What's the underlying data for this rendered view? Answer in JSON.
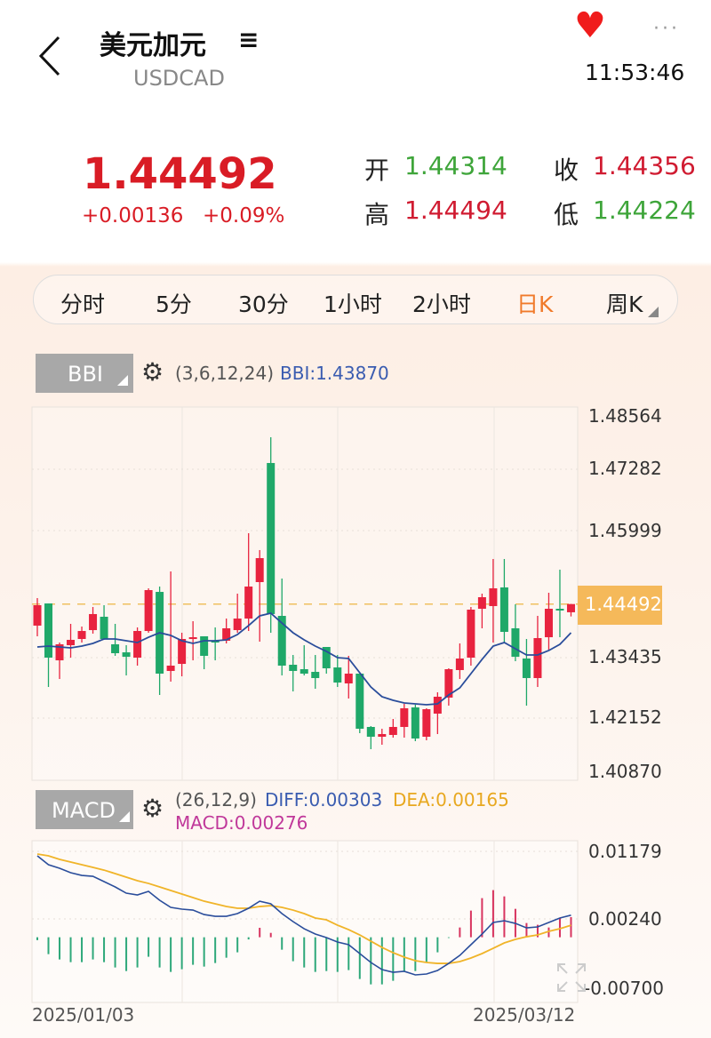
{
  "header": {
    "title": "美元加元",
    "menu_icon": "≡",
    "symbol": "USDCAD",
    "time": "11:53:46",
    "favorite_icon": "heart-icon",
    "more_icon": "···"
  },
  "quote": {
    "price": "1.44492",
    "change": "+0.00136",
    "change_pct": "+0.09%",
    "open_label": "开",
    "open": "1.44314",
    "close_label": "收",
    "close": "1.44356",
    "high_label": "高",
    "high": "1.44494",
    "low_label": "低",
    "low": "1.44224"
  },
  "tabs": [
    {
      "label": "分时"
    },
    {
      "label": "5分"
    },
    {
      "label": "30分"
    },
    {
      "label": "1小时"
    },
    {
      "label": "2小时"
    },
    {
      "label": "日K",
      "active": true
    },
    {
      "label": "周K"
    }
  ],
  "colors": {
    "up": "#e8233f",
    "down": "#1fa869",
    "bbi": "#2a4d9b",
    "diff": "#2a4d9b",
    "dea": "#f0b429",
    "accent": "#f07a2a",
    "price_tag": "#f5b95a",
    "macd": "#c0389a"
  },
  "indicator_main": {
    "name": "BBI",
    "params": "(3,6,12,24)",
    "value": "BBI:1.43870"
  },
  "indicator_sub": {
    "name": "MACD",
    "params": "(26,12,9)",
    "diff": "DIFF:0.00303",
    "dea": "DEA:0.00165",
    "macd": "MACD:0.00276"
  },
  "chart_data": [
    {
      "type": "candlestick",
      "yaxis_ticks": [
        "1.48564",
        "1.47282",
        "1.45999",
        "1.43435",
        "1.42152",
        "1.40870"
      ],
      "ylim": [
        1.4087,
        1.48564
      ],
      "current_price": "1.44492",
      "grid": true,
      "ohlc": [
        [
          1.44025,
          1.44621,
          1.43794,
          1.44467
        ],
        [
          1.44505,
          1.44505,
          1.42697,
          1.43332
        ],
        [
          1.43274,
          1.43659,
          1.4287,
          1.43621
        ],
        [
          1.43601,
          1.44063,
          1.43332,
          1.43717
        ],
        [
          1.43736,
          1.44005,
          1.43659,
          1.43909
        ],
        [
          1.43928,
          1.44428,
          1.43851,
          1.44275
        ],
        [
          1.44217,
          1.44467,
          1.43717,
          1.43736
        ],
        [
          1.43621,
          1.44063,
          1.43371,
          1.43428
        ],
        [
          1.43447,
          1.43601,
          1.42947,
          1.43351
        ],
        [
          1.43332,
          1.43986,
          1.43159,
          1.43909
        ],
        [
          1.43909,
          1.44832,
          1.43871,
          1.44794
        ],
        [
          1.44755,
          1.44871,
          1.42524,
          1.42986
        ],
        [
          1.43044,
          1.45198,
          1.42813,
          1.43159
        ],
        [
          1.43197,
          1.43871,
          1.42928,
          1.43736
        ],
        [
          1.43736,
          1.44121,
          1.43274,
          1.43774
        ],
        [
          1.43794,
          1.43794,
          1.43082,
          1.43371
        ],
        [
          1.43698,
          1.43986,
          1.43274,
          1.43659
        ],
        [
          1.43698,
          1.44178,
          1.4364,
          1.43967
        ],
        [
          1.43928,
          1.44717,
          1.43871,
          1.44178
        ],
        [
          1.44178,
          1.46025,
          1.43909,
          1.44871
        ],
        [
          1.44967,
          1.4566,
          1.43678,
          1.45486
        ],
        [
          1.47545,
          1.48102,
          1.43871,
          1.44275
        ],
        [
          1.44236,
          1.45044,
          1.42947,
          1.43159
        ],
        [
          1.43178,
          1.4339,
          1.42601,
          1.43044
        ],
        [
          1.43082,
          1.43601,
          1.42947,
          1.42986
        ],
        [
          1.43024,
          1.4339,
          1.42659,
          1.4289
        ],
        [
          1.43563,
          1.43563,
          1.42986,
          1.43101
        ],
        [
          1.4312,
          1.4339,
          1.42697,
          1.42793
        ],
        [
          1.42774,
          1.43371,
          1.42447,
          1.42986
        ],
        [
          1.42986,
          1.42986,
          1.41697,
          1.41793
        ],
        [
          1.41832,
          1.41851,
          1.41351,
          1.4162
        ],
        [
          1.4162,
          1.41793,
          1.41447,
          1.41678
        ],
        [
          1.41659,
          1.42005,
          1.41601,
          1.41832
        ],
        [
          1.41832,
          1.42332,
          1.41601,
          1.42236
        ],
        [
          1.42255,
          1.42313,
          1.41524,
          1.41582
        ],
        [
          1.4162,
          1.42236,
          1.41543,
          1.42216
        ],
        [
          1.4212,
          1.42582,
          1.41678,
          1.42486
        ],
        [
          1.42467,
          1.43101,
          1.42293,
          1.43082
        ],
        [
          1.43063,
          1.4364,
          1.4287,
          1.43313
        ],
        [
          1.43332,
          1.44428,
          1.43159,
          1.44371
        ],
        [
          1.4439,
          1.44717,
          1.43967,
          1.4464
        ],
        [
          1.44448,
          1.45467,
          1.43659,
          1.44832
        ],
        [
          1.44852,
          1.45467,
          1.43659,
          1.4389
        ],
        [
          1.43967,
          1.44486,
          1.43255,
          1.43351
        ],
        [
          1.43313,
          1.43736,
          1.42293,
          1.4289
        ],
        [
          1.4289,
          1.44236,
          1.42697,
          1.43755
        ],
        [
          1.43774,
          1.44736,
          1.43505,
          1.4439
        ],
        [
          1.4439,
          1.45236,
          1.43774,
          1.44352
        ],
        [
          1.44314,
          1.44494,
          1.44224,
          1.44492
        ]
      ],
      "bbi": [
        1.43563,
        1.43582,
        1.43563,
        1.43544,
        1.43582,
        1.4364,
        1.43736,
        1.43736,
        1.43698,
        1.43659,
        1.43774,
        1.43871,
        1.43813,
        1.43698,
        1.4364,
        1.43698,
        1.43698,
        1.43717,
        1.43832,
        1.44025,
        1.44236,
        1.44294,
        1.44082,
        1.43871,
        1.43717,
        1.43582,
        1.43467,
        1.43332,
        1.43313,
        1.43005,
        1.42697,
        1.42486,
        1.42409,
        1.42351,
        1.42332,
        1.42313,
        1.42332,
        1.42524,
        1.42678,
        1.42986,
        1.43294,
        1.43582,
        1.43659,
        1.43524,
        1.4339,
        1.4339,
        1.43486,
        1.43621,
        1.4387
      ]
    },
    {
      "type": "macd",
      "yaxis_ticks": [
        "0.01179",
        "0.00240",
        "-0.00700"
      ],
      "ylim": [
        -0.007,
        0.01179
      ],
      "xaxis_ticks": [
        "2025/01/03",
        "2025/03/12"
      ],
      "diff": [
        0.01118,
        0.00996,
        0.00947,
        0.00886,
        0.00849,
        0.00837,
        0.00764,
        0.00691,
        0.00605,
        0.00581,
        0.0063,
        0.00508,
        0.0041,
        0.00386,
        0.00373,
        0.00312,
        0.00288,
        0.00288,
        0.00325,
        0.00398,
        0.00495,
        0.00459,
        0.00325,
        0.00215,
        0.00117,
        0.00044,
        -5e-05,
        -0.00066,
        -0.00102,
        -0.00224,
        -0.00346,
        -0.00444,
        -0.00481,
        -0.00468,
        -0.00517,
        -0.00505,
        -0.00456,
        -0.00359,
        -0.00249,
        -0.00102,
        0.00044,
        0.00203,
        0.00227,
        0.0019,
        0.00129,
        0.00142,
        0.00203,
        0.00264,
        0.00303
      ],
      "dea": [
        0.01142,
        0.01118,
        0.01069,
        0.01032,
        0.00996,
        0.00959,
        0.00922,
        0.00874,
        0.00825,
        0.00776,
        0.00739,
        0.00691,
        0.00642,
        0.00593,
        0.00544,
        0.00495,
        0.00459,
        0.00422,
        0.00398,
        0.00398,
        0.00422,
        0.00434,
        0.0041,
        0.00373,
        0.00325,
        0.00264,
        0.00239,
        0.00166,
        0.00105,
        0.00032,
        -0.00054,
        -0.00139,
        -0.00212,
        -0.00273,
        -0.00322,
        -0.00346,
        -0.00359,
        -0.00359,
        -0.00334,
        -0.00285,
        -0.00224,
        -0.00151,
        -0.00078,
        -0.00029,
        7e-05,
        0.00032,
        0.00081,
        0.00117,
        0.00165
      ],
      "macd": [
        -0.0004,
        -0.00232,
        -0.00305,
        -0.00342,
        -0.00342,
        -0.00305,
        -0.00342,
        -0.00415,
        -0.00464,
        -0.00415,
        -0.00268,
        -0.00415,
        -0.00476,
        -0.00439,
        -0.00378,
        -0.00403,
        -0.00354,
        -0.00281,
        -0.00207,
        -0.0003,
        0.0013,
        0.0006,
        -0.00171,
        -0.00329,
        -0.00415,
        -0.00476,
        -0.00464,
        -0.00476,
        -0.00451,
        -0.00573,
        -0.00647,
        -0.00647,
        -0.00598,
        -0.00464,
        -0.00464,
        -0.00342,
        -0.00207,
        -0.0001,
        0.00134,
        0.00366,
        0.00537,
        0.00647,
        0.00561,
        0.0039,
        0.00195,
        0.00171,
        0.00134,
        0.00268,
        0.00276
      ]
    }
  ]
}
